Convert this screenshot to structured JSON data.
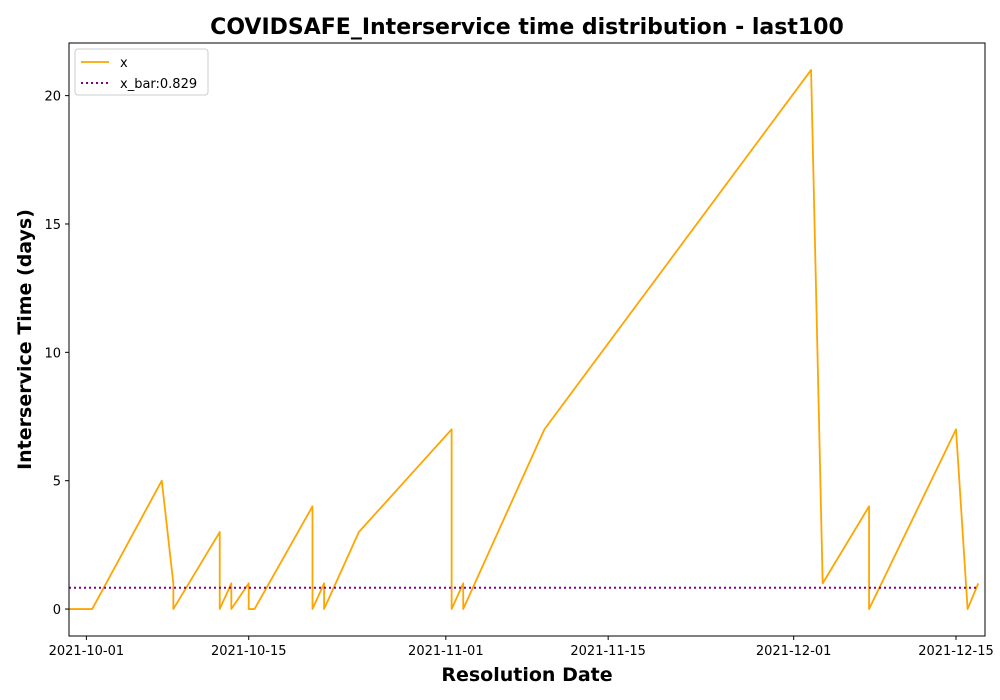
{
  "chart_data": {
    "type": "line",
    "title": "COVIDSAFE_Interservice time distribution - last100",
    "xlabel": "Resolution Date",
    "ylabel": "Interservice Time (days)",
    "xlim": [
      "2021-09-29T12:00",
      "2021-12-17T12:00"
    ],
    "ylim": [
      -1.05,
      22.05
    ],
    "x_ticks": [
      {
        "value": "2021-10-01",
        "label": "2021-10-01"
      },
      {
        "value": "2021-10-15",
        "label": "2021-10-15"
      },
      {
        "value": "2021-11-01",
        "label": "2021-11-01"
      },
      {
        "value": "2021-11-15",
        "label": "2021-11-15"
      },
      {
        "value": "2021-12-01",
        "label": "2021-12-01"
      },
      {
        "value": "2021-12-15",
        "label": "2021-12-15"
      }
    ],
    "y_ticks": [
      {
        "value": 0,
        "label": "0"
      },
      {
        "value": 5,
        "label": "5"
      },
      {
        "value": 10,
        "label": "10"
      },
      {
        "value": 15,
        "label": "15"
      },
      {
        "value": 20,
        "label": "20"
      }
    ],
    "grid": false,
    "legend_position": "top-left",
    "series": [
      {
        "name": "x",
        "style": "solid",
        "color": "#FFA500",
        "points": [
          [
            "2021-09-29T12:00",
            0
          ],
          [
            "2021-10-01T12:00",
            0
          ],
          [
            "2021-10-07T12:00",
            5
          ],
          [
            "2021-10-08T12:00",
            1
          ],
          [
            "2021-10-08T12:00",
            0
          ],
          [
            "2021-10-12T12:00",
            3
          ],
          [
            "2021-10-12T12:00",
            0
          ],
          [
            "2021-10-13T12:00",
            1
          ],
          [
            "2021-10-13T12:00",
            0
          ],
          [
            "2021-10-15T00:00",
            1
          ],
          [
            "2021-10-15T00:00",
            0
          ],
          [
            "2021-10-15T12:00",
            0
          ],
          [
            "2021-10-20T12:00",
            4
          ],
          [
            "2021-10-20T12:00",
            0
          ],
          [
            "2021-10-21T12:00",
            1
          ],
          [
            "2021-10-21T12:00",
            0
          ],
          [
            "2021-10-24T12:00",
            3
          ],
          [
            "2021-11-01T12:00",
            7
          ],
          [
            "2021-11-01T12:00",
            0
          ],
          [
            "2021-11-02T12:00",
            1
          ],
          [
            "2021-11-02T12:00",
            0
          ],
          [
            "2021-11-09T12:00",
            7
          ],
          [
            "2021-12-02T12:00",
            21
          ],
          [
            "2021-12-03T12:00",
            1
          ],
          [
            "2021-12-07T12:00",
            4
          ],
          [
            "2021-12-07T12:00",
            0
          ],
          [
            "2021-12-15T00:00",
            7
          ],
          [
            "2021-12-16T00:00",
            0
          ],
          [
            "2021-12-16T22:00",
            1
          ]
        ]
      },
      {
        "name": "x_bar:0.829",
        "style": "dotted",
        "color": "#800080",
        "points": [
          [
            "2021-09-29T12:00",
            0.829
          ],
          [
            "2021-12-16T22:00",
            0.829
          ]
        ]
      }
    ]
  }
}
